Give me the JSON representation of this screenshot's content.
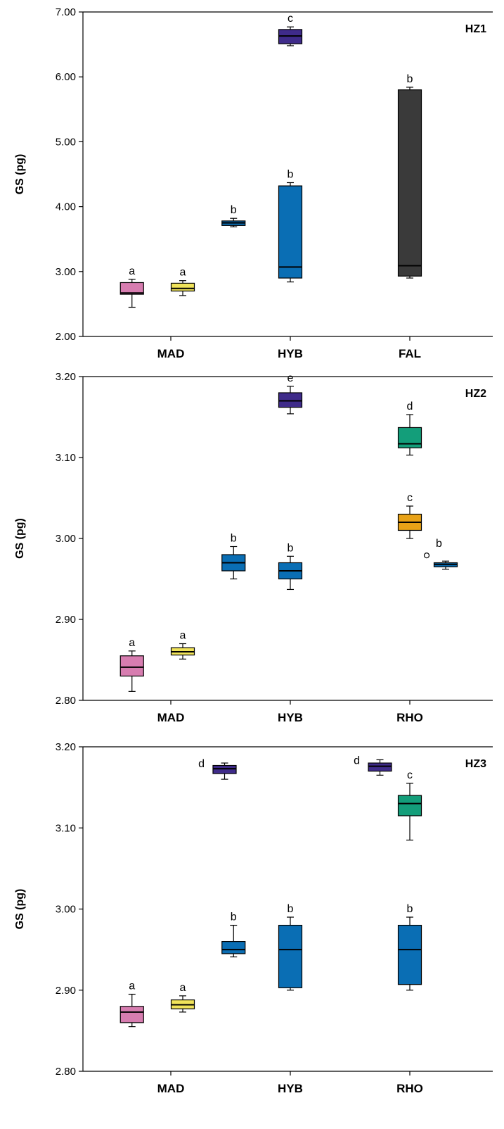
{
  "colors": {
    "pink": "#d77db0",
    "yellow": "#f0e35a",
    "blue": "#0a6eb4",
    "purple": "#3f2b8a",
    "dark": "#3a3a3a",
    "green": "#139e7a",
    "orange": "#e8a217"
  },
  "chart_data": [
    {
      "type": "box",
      "title": "HZ1",
      "ylabel": "GS (pg)",
      "ylim": [
        2.0,
        7.0
      ],
      "yticks": [
        "2.00",
        "3.00",
        "4.00",
        "5.00",
        "6.00",
        "7.00"
      ],
      "categories": [
        "MAD",
        "HYB",
        "FAL"
      ],
      "boxes": [
        {
          "x": 0.675,
          "color": "pink",
          "whislo": 2.45,
          "q1": 2.65,
          "med": 2.67,
          "q3": 2.83,
          "whishi": 2.88,
          "letter": "a"
        },
        {
          "x": 1.1,
          "color": "yellow",
          "whislo": 2.63,
          "q1": 2.7,
          "med": 2.74,
          "q3": 2.82,
          "whishi": 2.86,
          "letter": "a"
        },
        {
          "x": 1.525,
          "color": "blue",
          "whislo": 3.69,
          "q1": 3.71,
          "med": 3.75,
          "q3": 3.78,
          "whishi": 3.82,
          "letter": "b"
        },
        {
          "x": 2.0,
          "color": "blue",
          "whislo": 2.84,
          "q1": 2.9,
          "med": 3.07,
          "q3": 4.32,
          "whishi": 4.37,
          "letter": "b"
        },
        {
          "x": 2.0,
          "color": "purple",
          "whislo": 6.48,
          "q1": 6.51,
          "med": 6.63,
          "q3": 6.73,
          "whishi": 6.77,
          "letter": "c"
        },
        {
          "x": 3.0,
          "color": "dark",
          "whislo": 2.9,
          "q1": 2.93,
          "med": 3.09,
          "q3": 5.8,
          "whishi": 5.84,
          "letter": "b"
        }
      ]
    },
    {
      "type": "box",
      "title": "HZ2",
      "ylabel": "GS (pg)",
      "ylim": [
        2.8,
        3.2
      ],
      "yticks": [
        "2.80",
        "2.90",
        "3.00",
        "3.10",
        "3.20"
      ],
      "categories": [
        "MAD",
        "HYB",
        "RHO"
      ],
      "boxes": [
        {
          "x": 0.675,
          "color": "pink",
          "whislo": 2.811,
          "q1": 2.83,
          "med": 2.841,
          "q3": 2.855,
          "whishi": 2.861,
          "letter": "a"
        },
        {
          "x": 1.1,
          "color": "yellow",
          "whislo": 2.851,
          "q1": 2.856,
          "med": 2.86,
          "q3": 2.865,
          "whishi": 2.87,
          "letter": "a"
        },
        {
          "x": 1.525,
          "color": "blue",
          "whislo": 2.95,
          "q1": 2.96,
          "med": 2.97,
          "q3": 2.98,
          "whishi": 2.99,
          "letter": "b"
        },
        {
          "x": 2.0,
          "color": "blue",
          "whislo": 2.937,
          "q1": 2.95,
          "med": 2.96,
          "q3": 2.97,
          "whishi": 2.978,
          "letter": "b"
        },
        {
          "x": 2.0,
          "color": "purple",
          "whislo": 3.154,
          "q1": 3.162,
          "med": 3.17,
          "q3": 3.18,
          "whishi": 3.188,
          "letter": "e"
        },
        {
          "x": 3.0,
          "color": "green",
          "whislo": 3.103,
          "q1": 3.112,
          "med": 3.117,
          "q3": 3.137,
          "whishi": 3.153,
          "letter": "d"
        },
        {
          "x": 3.0,
          "color": "orange",
          "whislo": 3.0,
          "q1": 3.01,
          "med": 3.02,
          "q3": 3.03,
          "whishi": 3.04,
          "letter": "c"
        },
        {
          "x": 3.3,
          "color": "blue",
          "whislo": 2.962,
          "q1": 2.965,
          "med": 2.968,
          "q3": 2.97,
          "whishi": 2.972,
          "letter": "b",
          "outlier": 2.979
        }
      ]
    },
    {
      "type": "box",
      "title": "HZ3",
      "ylabel": "GS (pg)",
      "ylim": [
        2.8,
        3.2
      ],
      "yticks": [
        "2.80",
        "2.90",
        "3.00",
        "3.10",
        "3.20"
      ],
      "categories": [
        "MAD",
        "HYB",
        "RHO"
      ],
      "boxes": [
        {
          "x": 0.675,
          "color": "pink",
          "whislo": 2.855,
          "q1": 2.86,
          "med": 2.873,
          "q3": 2.88,
          "whishi": 2.895,
          "letter": "a"
        },
        {
          "x": 1.1,
          "color": "yellow",
          "whislo": 2.873,
          "q1": 2.877,
          "med": 2.882,
          "q3": 2.888,
          "whishi": 2.893,
          "letter": "a"
        },
        {
          "x": 1.525,
          "color": "blue",
          "whislo": 2.941,
          "q1": 2.945,
          "med": 2.95,
          "q3": 2.96,
          "whishi": 2.98,
          "letter": "b"
        },
        {
          "x": 1.45,
          "color": "purple",
          "whislo": 3.16,
          "q1": 3.167,
          "med": 3.173,
          "q3": 3.177,
          "whishi": 3.18,
          "letter": "d",
          "letter_side": "left"
        },
        {
          "x": 2.0,
          "color": "blue",
          "whislo": 2.9,
          "q1": 2.903,
          "med": 2.95,
          "q3": 2.98,
          "whishi": 2.99,
          "letter": "b"
        },
        {
          "x": 2.75,
          "color": "purple",
          "whislo": 3.165,
          "q1": 3.17,
          "med": 3.176,
          "q3": 3.18,
          "whishi": 3.184,
          "letter": "d",
          "letter_side": "left"
        },
        {
          "x": 3.0,
          "color": "green",
          "whislo": 3.085,
          "q1": 3.115,
          "med": 3.13,
          "q3": 3.14,
          "whishi": 3.155,
          "letter": "c"
        },
        {
          "x": 3.0,
          "color": "blue",
          "whislo": 2.9,
          "q1": 2.907,
          "med": 2.95,
          "q3": 2.98,
          "whishi": 2.99,
          "letter": "b"
        }
      ]
    }
  ]
}
